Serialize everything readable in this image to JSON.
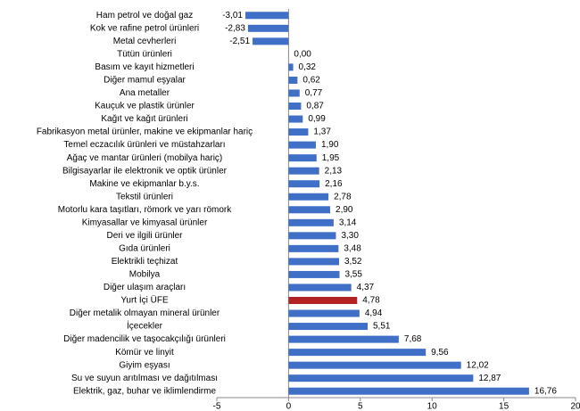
{
  "chart_data": {
    "type": "bar",
    "orientation": "horizontal",
    "categories": [
      "Ham petrol ve doğal gaz",
      "Kok ve rafine petrol ürünleri",
      "Metal cevherleri",
      "Tütün ürünleri",
      "Basım ve kayıt hizmetleri",
      "Diğer mamul eşyalar",
      "Ana metaller",
      "Kauçuk ve plastik ürünler",
      "Kağıt ve kağıt ürünleri",
      "Fabrikasyon metal ürünler, makine ve ekipmanlar hariç",
      "Temel eczacılık ürünleri ve müstahzarları",
      "Ağaç ve mantar ürünleri (mobilya hariç)",
      "Bilgisayarlar ile elektronik ve optik ürünler",
      "Makine ve ekipmanlar b.y.s.",
      "Tekstil ürünleri",
      "Motorlu kara taşıtları, römork ve yarı römork",
      "Kimyasallar ve kimyasal ürünler",
      "Deri ve ilgili ürünler",
      "Gıda ürünleri",
      "Elektrikli teçhizat",
      "Mobilya",
      "Diğer ulaşım araçları",
      "Yurt İçi ÜFE",
      "Diğer metalik olmayan mineral ürünler",
      "İçecekler",
      "Diğer madencilik ve taşocakçılığı ürünleri",
      "Kömür ve linyit",
      "Giyim eşyası",
      "Su ve suyun arıtılması ve dağıtılması",
      "Elektrik, gaz, buhar ve iklimlendirme"
    ],
    "values": [
      -3.01,
      -2.83,
      -2.51,
      0.0,
      0.32,
      0.62,
      0.77,
      0.87,
      0.99,
      1.37,
      1.9,
      1.95,
      2.13,
      2.16,
      2.78,
      2.9,
      3.14,
      3.3,
      3.48,
      3.52,
      3.55,
      4.37,
      4.78,
      4.94,
      5.51,
      7.68,
      9.56,
      12.02,
      12.87,
      16.76
    ],
    "value_labels": [
      "-3,01",
      "-2,83",
      "-2,51",
      "0,00",
      "0,32",
      "0,62",
      "0,77",
      "0,87",
      "0,99",
      "1,37",
      "1,90",
      "1,95",
      "2,13",
      "2,16",
      "2,78",
      "2,90",
      "3,14",
      "3,30",
      "3,48",
      "3,52",
      "3,55",
      "4,37",
      "4,78",
      "4,94",
      "5,51",
      "7,68",
      "9,56",
      "12,02",
      "12,87",
      "16,76"
    ],
    "colors": [
      "#3f6fc6",
      "#3f6fc6",
      "#3f6fc6",
      "#3f6fc6",
      "#3f6fc6",
      "#3f6fc6",
      "#3f6fc6",
      "#3f6fc6",
      "#3f6fc6",
      "#3f6fc6",
      "#3f6fc6",
      "#3f6fc6",
      "#3f6fc6",
      "#3f6fc6",
      "#3f6fc6",
      "#3f6fc6",
      "#3f6fc6",
      "#3f6fc6",
      "#3f6fc6",
      "#3f6fc6",
      "#3f6fc6",
      "#3f6fc6",
      "#b22222",
      "#3f6fc6",
      "#3f6fc6",
      "#3f6fc6",
      "#3f6fc6",
      "#3f6fc6",
      "#3f6fc6",
      "#3f6fc6"
    ],
    "xlim": [
      -5,
      20
    ],
    "xticks": [
      -5,
      0,
      5,
      10,
      15,
      20
    ]
  }
}
